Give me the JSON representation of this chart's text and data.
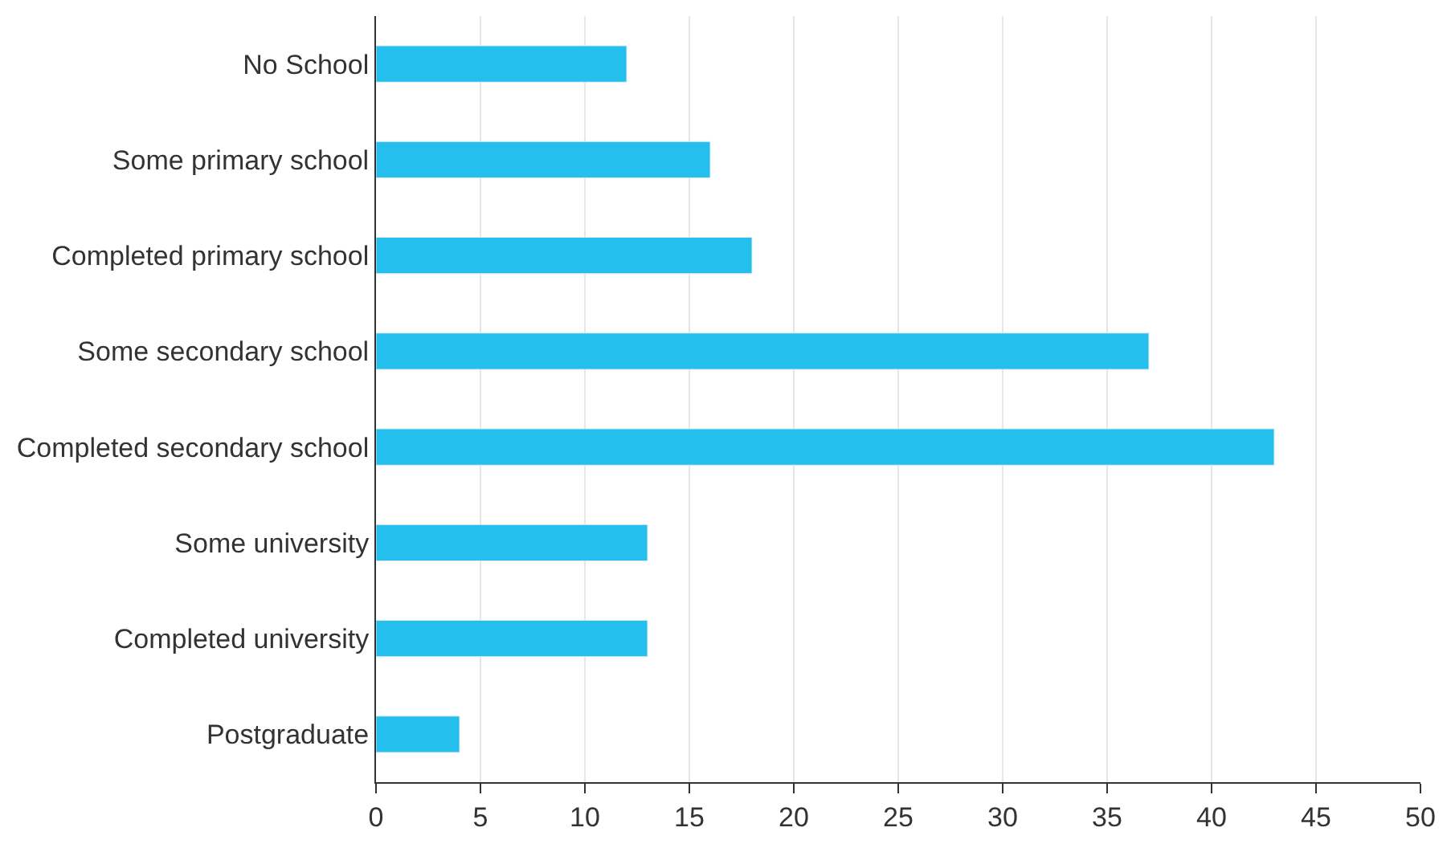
{
  "chart_data": {
    "type": "bar",
    "orientation": "horizontal",
    "categories": [
      "No School",
      "Some primary school",
      "Completed primary school",
      "Some secondary school",
      "Completed secondary school",
      "Some university",
      "Completed university",
      "Postgraduate"
    ],
    "values": [
      12,
      16,
      18,
      37,
      43,
      13,
      13,
      4
    ],
    "color": "#25bfee",
    "xlim": [
      0,
      50
    ],
    "xticks": [
      0,
      5,
      10,
      15,
      20,
      25,
      30,
      35,
      40,
      45,
      50
    ],
    "grid": "x",
    "legend": false
  }
}
